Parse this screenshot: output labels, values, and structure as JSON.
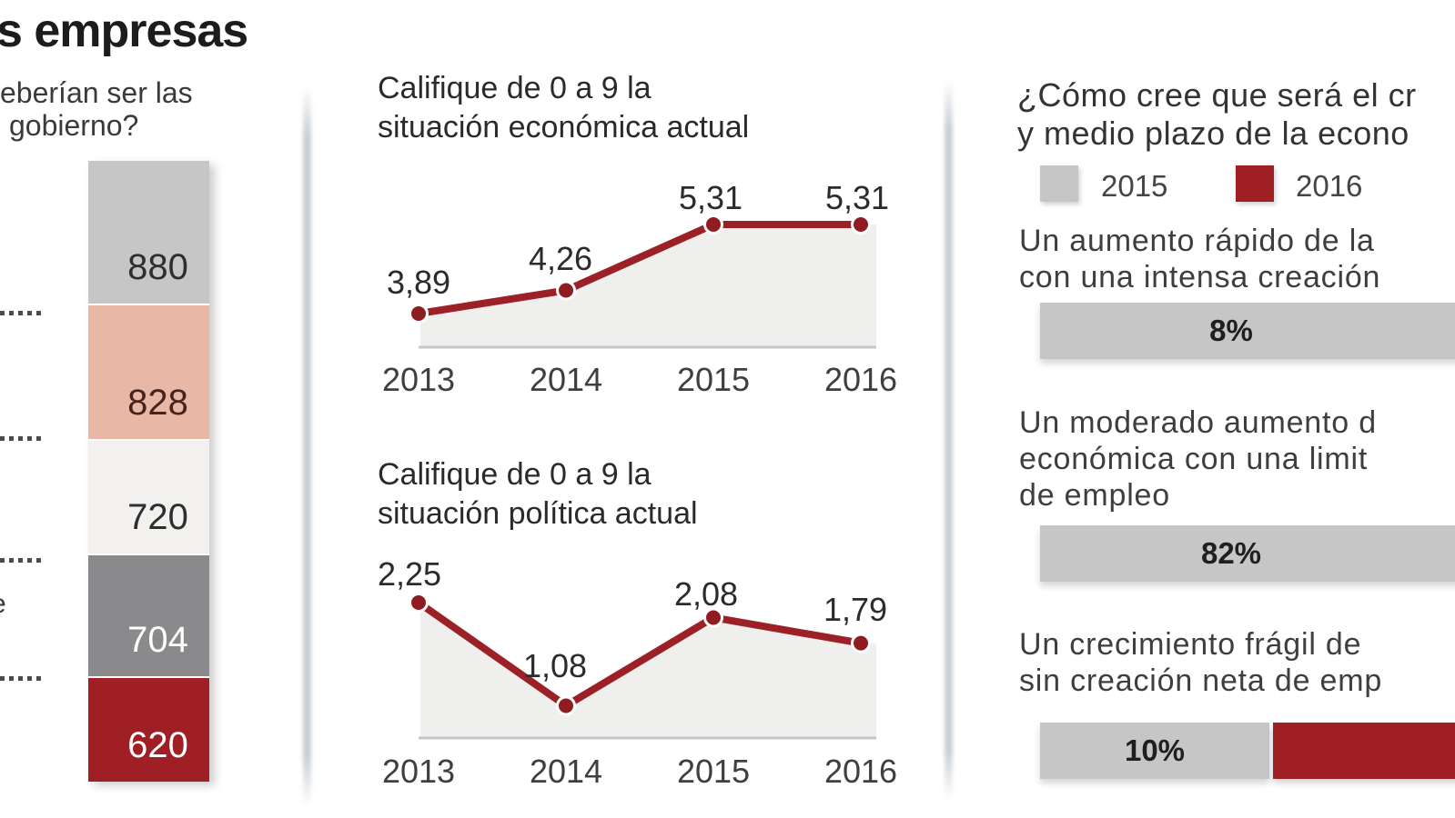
{
  "page_title": "s empresas",
  "left_panel": {
    "question_line1": "eberían ser las",
    "question_line2": "gobierno?",
    "cut_label_fragment": "e"
  },
  "middle_panel": {
    "econ_title_line1": "Califique de 0 a 9 la",
    "econ_title_line2": "situación económica actual",
    "pol_title_line1": "Califique de 0 a 9 la",
    "pol_title_line2": "situación política actual"
  },
  "right_panel": {
    "question_line1": "¿Cómo cree que será el cr",
    "question_line2": "y medio plazo de la econo",
    "legend": {
      "items": [
        {
          "label": "2015",
          "color": "#c6c6c6"
        },
        {
          "label": "2016",
          "color": "#a01f24"
        }
      ]
    }
  },
  "colors": {
    "dark_red": "#a01f24",
    "line_red": "#9c2126",
    "dot_red": "#8f1c21",
    "bar_gray": "#c6c6c6",
    "salmon": "#e8b7a5",
    "light_gray": "#f2f1ef",
    "dark_gray": "#8a8a8c",
    "area_fill": "#efefee",
    "baseline": "#c6c6c6"
  },
  "chart_data": [
    {
      "id": "government_priorities",
      "type": "bar",
      "subtype": "stacked-column",
      "values": [
        880,
        828,
        720,
        704,
        620
      ],
      "value_labels": [
        "880",
        "828",
        "720",
        "704",
        "620"
      ],
      "segment_colors": [
        "#c6c6c6",
        "#e8b7a5",
        "#f2f1ef",
        "#8a8a8c",
        "#a01f24"
      ],
      "label_colors": [
        "#2e2e2e",
        "#46231c",
        "#2e2e2e",
        "#ffffff",
        "#ffffff"
      ],
      "category_labels_visible": false
    },
    {
      "id": "economic_situation",
      "type": "line",
      "title": "Califique de 0 a 9 la situación económica actual",
      "x": [
        "2013",
        "2014",
        "2015",
        "2016"
      ],
      "values": [
        3.89,
        4.26,
        5.31,
        5.31
      ],
      "point_labels": [
        "3,89",
        "4,26",
        "5,31",
        "5,31"
      ],
      "ylim": [
        0,
        9
      ],
      "y_axis_truncated": true,
      "line_color": "#9c2126",
      "area_color": "#efefee",
      "grid": false
    },
    {
      "id": "political_situation",
      "type": "line",
      "title": "Califique de 0 a 9 la situación política actual",
      "x": [
        "2013",
        "2014",
        "2015",
        "2016"
      ],
      "values": [
        2.25,
        1.08,
        2.08,
        1.79
      ],
      "point_labels": [
        "2,25",
        "1,08",
        "2,08",
        "1,79"
      ],
      "ylim": [
        0,
        9
      ],
      "y_axis_truncated": true,
      "line_color": "#9c2126",
      "area_color": "#efefee",
      "grid": false
    },
    {
      "id": "growth_expectations",
      "type": "bar",
      "subtype": "horizontal-percent",
      "legend": [
        "2015",
        "2016"
      ],
      "legend_colors": [
        "#c6c6c6",
        "#a01f24"
      ],
      "options": [
        {
          "text_lines": [
            "Un aumento rápido de la",
            "con una intensa creación"
          ],
          "value": 8,
          "value_label": "8%",
          "visible_bars": [
            "2015"
          ]
        },
        {
          "text_lines": [
            "Un moderado aumento d",
            "económica con una limit",
            "de empleo"
          ],
          "value": 82,
          "value_label": "82%",
          "visible_bars": [
            "2015"
          ]
        },
        {
          "text_lines": [
            "Un crecimiento frágil de",
            "sin creación neta de emp"
          ],
          "value": 10,
          "value_label": "10%",
          "visible_bars": [
            "2015",
            "2016"
          ]
        }
      ]
    }
  ]
}
